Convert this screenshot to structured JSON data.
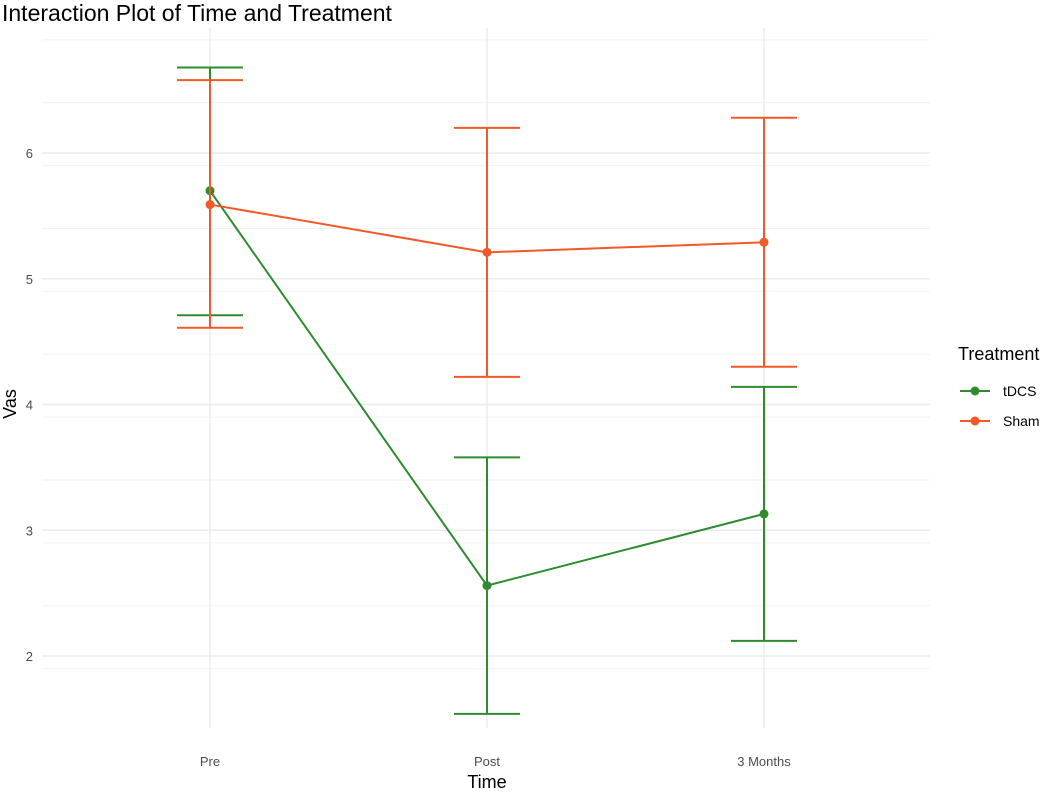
{
  "chart_data": {
    "type": "line",
    "title": "Interaction Plot of Time and Treatment",
    "xlabel": "Time",
    "ylabel": "Vas",
    "categories": [
      "Pre",
      "Post",
      "3 Months"
    ],
    "ylim": [
      1.4,
      7.1
    ],
    "yticks": [
      2,
      3,
      4,
      5,
      6
    ],
    "grid": true,
    "legend": {
      "title": "Treatment",
      "position": "right"
    },
    "series": [
      {
        "name": "tDCS",
        "color": "#2e8b2e",
        "values": [
          5.7,
          2.56,
          3.13
        ],
        "error_low": [
          4.71,
          1.54,
          2.12
        ],
        "error_high": [
          6.68,
          3.58,
          4.14
        ]
      },
      {
        "name": "Sham",
        "color": "#f05a28",
        "values": [
          5.59,
          5.21,
          5.29
        ],
        "error_low": [
          4.61,
          4.22,
          4.3
        ],
        "error_high": [
          6.58,
          6.2,
          6.28
        ]
      }
    ]
  }
}
